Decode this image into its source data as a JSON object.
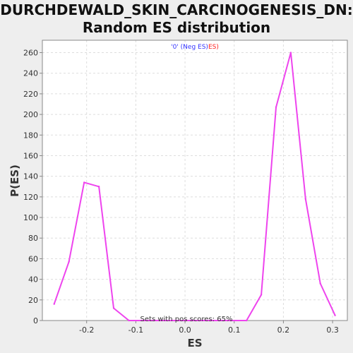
{
  "chart_data": {
    "type": "line",
    "title": [
      "DURCHDEWALD_SKIN_CARCINOGENESIS_DN:",
      "Random ES distribution"
    ],
    "xlabel": "ES",
    "ylabel": "P(ES)",
    "xlim": [
      -0.29,
      0.33
    ],
    "ylim": [
      0,
      272
    ],
    "xticks": [
      -0.2,
      -0.1,
      0.0,
      0.1,
      0.2,
      0.3
    ],
    "xtick_labels": [
      "-0.2",
      "-0.1",
      "0.0",
      "0.1",
      "0.2",
      "0.3"
    ],
    "yticks": [
      0,
      20,
      40,
      60,
      80,
      100,
      120,
      140,
      160,
      180,
      200,
      220,
      240,
      260
    ],
    "grid": true,
    "legend": {
      "placement": "top-center",
      "parts": [
        {
          "text": "'0' (Neg ES)",
          "color": "#3333ff"
        },
        {
          "text": "ES)",
          "color": "#ff2222"
        }
      ]
    },
    "annotation": "Sets with pos scores: 65%",
    "series": [
      {
        "color": "#ee44ee",
        "x": [
          -0.266,
          -0.236,
          -0.205,
          -0.175,
          -0.145,
          -0.114,
          -0.084,
          0.125,
          0.155,
          0.185,
          0.215,
          0.245,
          0.275,
          0.305
        ],
        "y": [
          16,
          57,
          134,
          130,
          12,
          0,
          0,
          0,
          25,
          207,
          260,
          118,
          36,
          5
        ]
      }
    ]
  }
}
